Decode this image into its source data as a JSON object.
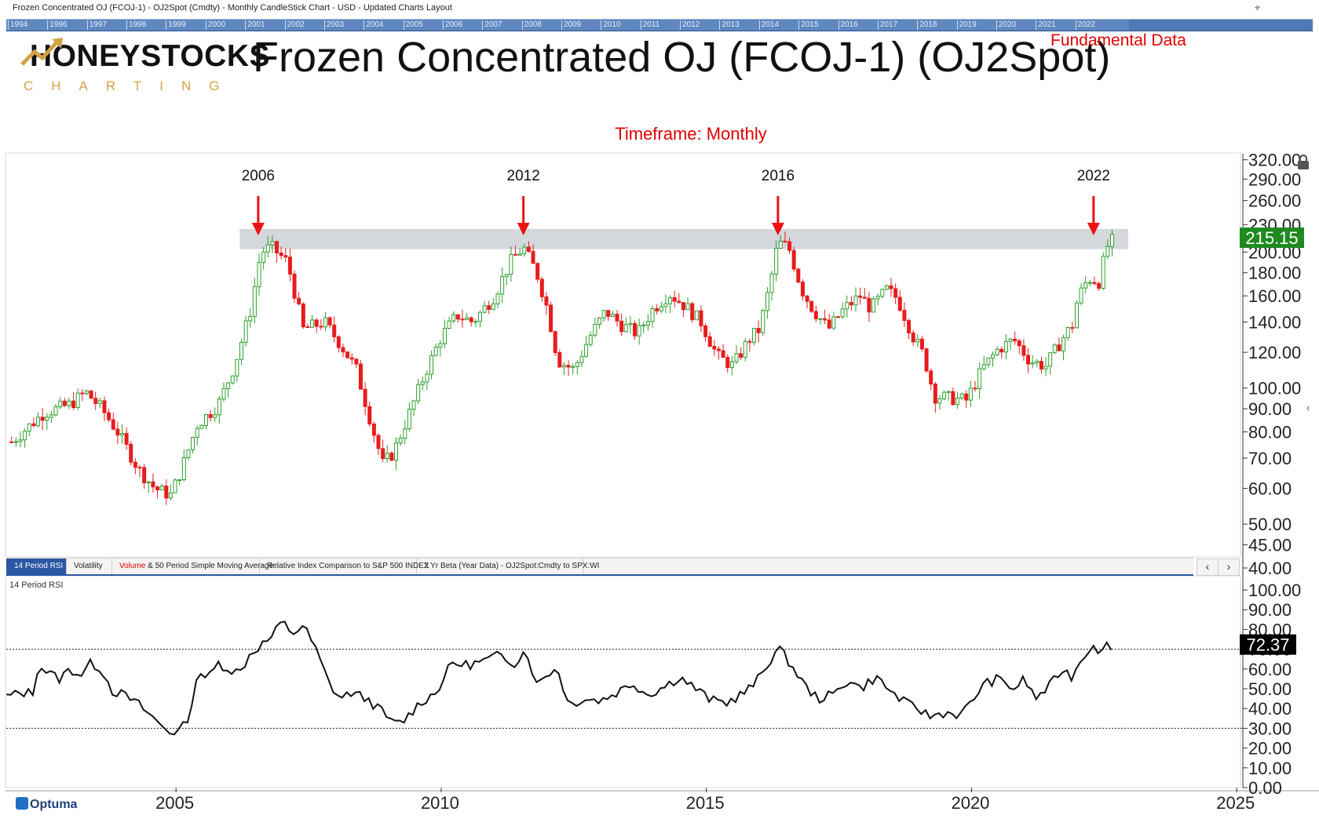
{
  "window_title": "Frozen Concentrated OJ (FCOJ-1) - OJ2Spot (Cmdty) - Monthly CandleStick Chart - USD - Updated Charts Layout",
  "timeline_years": [
    "1994",
    "1996",
    "1997",
    "1998",
    "1999",
    "2000",
    "2001",
    "2002",
    "2003",
    "2004",
    "2005",
    "2006",
    "2007",
    "2008",
    "2009",
    "2010",
    "2011",
    "2012",
    "2013",
    "2014",
    "2015",
    "2016",
    "2017",
    "2018",
    "2019",
    "2020",
    "2021",
    "2022"
  ],
  "logo": {
    "main": "HONEYSTOCKS",
    "sub": "CHARTING"
  },
  "chart_title": "Frozen Concentrated OJ (FCOJ-1) (OJ2Spot)",
  "fundamental_link": "Fundamental Data",
  "timeframe_label": "Timeframe: Monthly",
  "tabs": [
    {
      "label": "14 Period RSI",
      "active": true
    },
    {
      "label": "Volatility",
      "active": false
    },
    {
      "label_red": "Volume",
      "label": " & 50 Period Simple Moving Average",
      "active": false
    },
    {
      "label": "Relative Index Comparison to S&P 500 INDEX",
      "active": false
    },
    {
      "label": "2 Yr Beta (Year Data) - OJ2Spot:Cmdty to SPX:WI",
      "active": false
    }
  ],
  "nav": {
    "prev": "‹",
    "next": "›"
  },
  "rsi_panel_label": "14 Period RSI",
  "optuma_label": "Optuma",
  "icons": {
    "lock": "lock-icon",
    "pin": "pin-icon",
    "side_arrow": "chevron-left-icon"
  },
  "colors": {
    "up": "#2e9e2e",
    "down": "#e81c1c",
    "band": "#cfd3d8",
    "arrow": "#ee1111",
    "price_tag": "#1f8a1f",
    "rsi_tag": "#000000"
  },
  "chart_data": [
    {
      "type": "candlestick",
      "yscale": "log",
      "ylim": [
        40,
        330
      ],
      "xlim": [
        2001.8,
        2025.1
      ],
      "xticks": [
        2005,
        2010,
        2015,
        2020,
        2025
      ],
      "yticks": [
        320,
        290,
        260,
        230,
        200,
        180,
        160,
        140,
        120,
        100,
        90,
        80,
        70,
        60,
        50,
        45,
        40
      ],
      "ytick_labels": [
        "320.00",
        "290.00",
        "260.00",
        "230.00",
        "200.00",
        "180.00",
        "160.00",
        "140.00",
        "120.00",
        "100.00",
        "90.00",
        "80.00",
        "70.00",
        "60.00",
        "50.00",
        "45.00",
        "40.00"
      ],
      "last_price": "215.15",
      "resistance_band": [
        203,
        225
      ],
      "annotations": [
        {
          "label": "2006",
          "x": 2006.55
        },
        {
          "label": "2012",
          "x": 2011.55
        },
        {
          "label": "2016",
          "x": 2016.35
        },
        {
          "label": "2022",
          "x": 2022.3
        }
      ],
      "close_path": [
        [
          2001.9,
          76
        ],
        [
          2002.5,
          88
        ],
        [
          2003.0,
          92
        ],
        [
          2003.3,
          98
        ],
        [
          2003.6,
          90
        ],
        [
          2003.9,
          80
        ],
        [
          2004.3,
          66
        ],
        [
          2004.6,
          60
        ],
        [
          2004.9,
          58
        ],
        [
          2005.1,
          66
        ],
        [
          2005.4,
          83
        ],
        [
          2005.8,
          92
        ],
        [
          2006.1,
          112
        ],
        [
          2006.4,
          148
        ],
        [
          2006.6,
          200
        ],
        [
          2006.8,
          205
        ],
        [
          2007.1,
          190
        ],
        [
          2007.4,
          135
        ],
        [
          2007.8,
          140
        ],
        [
          2008.1,
          125
        ],
        [
          2008.4,
          110
        ],
        [
          2008.7,
          82
        ],
        [
          2008.9,
          68
        ],
        [
          2009.1,
          72
        ],
        [
          2009.4,
          88
        ],
        [
          2009.7,
          108
        ],
        [
          2010.0,
          130
        ],
        [
          2010.3,
          145
        ],
        [
          2010.6,
          140
        ],
        [
          2011.0,
          160
        ],
        [
          2011.3,
          190
        ],
        [
          2011.55,
          205
        ],
        [
          2011.8,
          180
        ],
        [
          2012.0,
          150
        ],
        [
          2012.2,
          115
        ],
        [
          2012.5,
          110
        ],
        [
          2012.8,
          130
        ],
        [
          2013.1,
          148
        ],
        [
          2013.4,
          138
        ],
        [
          2013.7,
          132
        ],
        [
          2014.0,
          150
        ],
        [
          2014.3,
          162
        ],
        [
          2014.6,
          152
        ],
        [
          2014.9,
          140
        ],
        [
          2015.2,
          118
        ],
        [
          2015.5,
          112
        ],
        [
          2015.8,
          128
        ],
        [
          2016.0,
          135
        ],
        [
          2016.2,
          170
        ],
        [
          2016.35,
          210
        ],
        [
          2016.55,
          205
        ],
        [
          2016.8,
          165
        ],
        [
          2017.0,
          150
        ],
        [
          2017.3,
          135
        ],
        [
          2017.6,
          150
        ],
        [
          2017.9,
          160
        ],
        [
          2018.1,
          150
        ],
        [
          2018.4,
          165
        ],
        [
          2018.6,
          158
        ],
        [
          2018.9,
          130
        ],
        [
          2019.1,
          118
        ],
        [
          2019.3,
          96
        ],
        [
          2019.6,
          95
        ],
        [
          2019.9,
          94
        ],
        [
          2020.2,
          110
        ],
        [
          2020.5,
          122
        ],
        [
          2020.8,
          128
        ],
        [
          2021.1,
          115
        ],
        [
          2021.4,
          112
        ],
        [
          2021.7,
          128
        ],
        [
          2021.9,
          138
        ],
        [
          2022.0,
          158
        ],
        [
          2022.2,
          175
        ],
        [
          2022.4,
          172
        ],
        [
          2022.55,
          205
        ],
        [
          2022.7,
          215
        ]
      ]
    },
    {
      "type": "line",
      "name": "14 Period RSI",
      "ylim": [
        0,
        100
      ],
      "yticks": [
        100,
        90,
        80,
        70,
        60,
        50,
        40,
        30,
        20,
        10,
        0
      ],
      "ytick_labels": [
        "100.00",
        "90.00",
        "80.00",
        "70.00",
        "60.00",
        "50.00",
        "40.00",
        "30.00",
        "20.00",
        "10.00",
        "0.00"
      ],
      "overbought": 70,
      "oversold": 30,
      "last_value": "72.37",
      "points": [
        [
          2001.8,
          46
        ],
        [
          2002.1,
          48
        ],
        [
          2002.3,
          48
        ],
        [
          2002.4,
          62
        ],
        [
          2002.6,
          58
        ],
        [
          2002.8,
          55
        ],
        [
          2003.0,
          60
        ],
        [
          2003.2,
          57
        ],
        [
          2003.4,
          63
        ],
        [
          2003.6,
          60
        ],
        [
          2003.8,
          49
        ],
        [
          2004.0,
          47
        ],
        [
          2004.3,
          42
        ],
        [
          2004.7,
          32
        ],
        [
          2004.9,
          28
        ],
        [
          2005.1,
          29
        ],
        [
          2005.3,
          40
        ],
        [
          2005.4,
          60
        ],
        [
          2005.6,
          55
        ],
        [
          2005.8,
          63
        ],
        [
          2006.0,
          60
        ],
        [
          2006.2,
          58
        ],
        [
          2006.4,
          68
        ],
        [
          2006.6,
          72
        ],
        [
          2006.8,
          76
        ],
        [
          2007.0,
          84
        ],
        [
          2007.2,
          78
        ],
        [
          2007.4,
          82
        ],
        [
          2007.6,
          72
        ],
        [
          2007.9,
          52
        ],
        [
          2008.1,
          45
        ],
        [
          2008.3,
          48
        ],
        [
          2008.6,
          45
        ],
        [
          2008.9,
          38
        ],
        [
          2009.1,
          32
        ],
        [
          2009.3,
          34
        ],
        [
          2009.6,
          43
        ],
        [
          2009.9,
          48
        ],
        [
          2010.2,
          63
        ],
        [
          2010.5,
          62
        ],
        [
          2010.8,
          64
        ],
        [
          2011.1,
          67
        ],
        [
          2011.4,
          63
        ],
        [
          2011.6,
          70
        ],
        [
          2011.8,
          52
        ],
        [
          2012.0,
          58
        ],
        [
          2012.2,
          60
        ],
        [
          2012.4,
          42
        ],
        [
          2012.7,
          45
        ],
        [
          2013.0,
          44
        ],
        [
          2013.3,
          48
        ],
        [
          2013.6,
          53
        ],
        [
          2013.9,
          47
        ],
        [
          2014.2,
          51
        ],
        [
          2014.5,
          56
        ],
        [
          2014.8,
          50
        ],
        [
          2015.1,
          44
        ],
        [
          2015.4,
          43
        ],
        [
          2015.7,
          48
        ],
        [
          2015.9,
          52
        ],
        [
          2016.1,
          60
        ],
        [
          2016.35,
          71
        ],
        [
          2016.6,
          62
        ],
        [
          2016.9,
          50
        ],
        [
          2017.1,
          45
        ],
        [
          2017.4,
          47
        ],
        [
          2017.7,
          55
        ],
        [
          2017.9,
          50
        ],
        [
          2018.2,
          56
        ],
        [
          2018.5,
          48
        ],
        [
          2018.8,
          42
        ],
        [
          2019.0,
          40
        ],
        [
          2019.2,
          36
        ],
        [
          2019.5,
          38
        ],
        [
          2019.8,
          37
        ],
        [
          2020.0,
          43
        ],
        [
          2020.2,
          52
        ],
        [
          2020.5,
          55
        ],
        [
          2020.8,
          50
        ],
        [
          2021.0,
          55
        ],
        [
          2021.2,
          45
        ],
        [
          2021.5,
          52
        ],
        [
          2021.7,
          60
        ],
        [
          2021.9,
          56
        ],
        [
          2022.0,
          62
        ],
        [
          2022.15,
          68
        ],
        [
          2022.3,
          73
        ],
        [
          2022.45,
          68
        ],
        [
          2022.55,
          72
        ],
        [
          2022.7,
          72
        ]
      ]
    }
  ]
}
